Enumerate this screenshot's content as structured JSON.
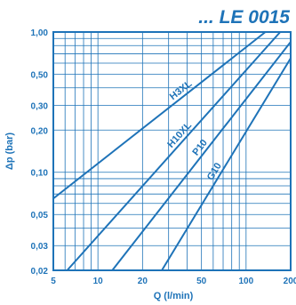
{
  "chart_data": {
    "type": "line",
    "title": "... LE 0015",
    "xlabel": "Q (l/min)",
    "ylabel": "Δp (bar)",
    "x_scale": "log",
    "y_scale": "log",
    "xlim": [
      5,
      200
    ],
    "ylim": [
      0.02,
      1.0
    ],
    "x_ticks": [
      5,
      10,
      20,
      50,
      100,
      200
    ],
    "x_tick_labels": [
      "5",
      "10",
      "20",
      "50",
      "100",
      "200"
    ],
    "y_ticks": [
      0.02,
      0.03,
      0.05,
      0.1,
      0.2,
      0.3,
      0.5,
      1.0
    ],
    "y_tick_labels": [
      "0,02",
      "0,03",
      "0,05",
      "0,10",
      "0,20",
      "0,30",
      "0,50",
      "1,00"
    ],
    "grid": true,
    "series": [
      {
        "name": "H3XL",
        "points": [
          [
            5,
            0.065
          ],
          [
            135,
            1.0
          ]
        ]
      },
      {
        "name": "H10XL",
        "points": [
          [
            6.2,
            0.02
          ],
          [
            170,
            1.0
          ]
        ]
      },
      {
        "name": "P10",
        "points": [
          [
            12.5,
            0.02
          ],
          [
            200,
            0.85
          ]
        ]
      },
      {
        "name": "G10",
        "points": [
          [
            27,
            0.02
          ],
          [
            200,
            0.65
          ]
        ]
      }
    ],
    "colors": {
      "line": "#1e73b8",
      "text": "#1e73b8",
      "axis": "#1e73b8",
      "grid": "#1e73b8"
    }
  }
}
